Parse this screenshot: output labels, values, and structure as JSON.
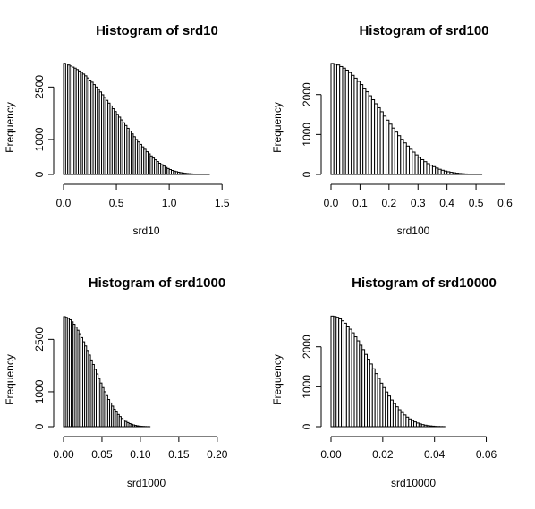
{
  "chart_data": [
    {
      "type": "bar",
      "title": "Histogram of srd10",
      "xlabel": "srd10",
      "ylabel": "Frequency",
      "xlim": [
        0,
        1.6
      ],
      "ylim": [
        0,
        3200
      ],
      "xticks": [
        0,
        0.5,
        1.0,
        1.5
      ],
      "xtick_labels": [
        "0.0",
        "0.5",
        "1.0",
        "1.5"
      ],
      "yticks": [
        0,
        1000,
        2500
      ],
      "ytick_labels": [
        "0",
        "1000",
        "2500"
      ],
      "bin_start": 0,
      "bin_width": 0.02,
      "values": [
        3180,
        3160,
        3130,
        3100,
        3070,
        3040,
        3000,
        2960,
        2920,
        2870,
        2820,
        2760,
        2700,
        2640,
        2570,
        2500,
        2430,
        2360,
        2280,
        2200,
        2120,
        2040,
        1960,
        1880,
        1800,
        1720,
        1640,
        1560,
        1480,
        1400,
        1320,
        1240,
        1160,
        1080,
        1000,
        930,
        860,
        790,
        720,
        650,
        590,
        530,
        470,
        420,
        370,
        320,
        280,
        240,
        200,
        170,
        140,
        115,
        95,
        80,
        65,
        52,
        42,
        34,
        27,
        22,
        17,
        13,
        10,
        7,
        5,
        3,
        2,
        1,
        1
      ]
    },
    {
      "type": "bar",
      "title": "Histogram of srd100",
      "xlabel": "srd100",
      "ylabel": "Frequency",
      "xlim": [
        0,
        0.58
      ],
      "ylim": [
        0,
        2800
      ],
      "xticks": [
        0,
        0.1,
        0.2,
        0.3,
        0.4,
        0.5,
        0.6
      ],
      "xtick_labels": [
        "0.0",
        "0.1",
        "0.2",
        "0.3",
        "0.4",
        "0.5",
        "0.6"
      ],
      "yticks": [
        0,
        1000,
        2000
      ],
      "ytick_labels": [
        "0",
        "1000",
        "2000"
      ],
      "bin_start": 0,
      "bin_width": 0.01,
      "values": [
        2780,
        2760,
        2740,
        2700,
        2660,
        2610,
        2550,
        2480,
        2410,
        2330,
        2250,
        2160,
        2070,
        1970,
        1870,
        1770,
        1670,
        1570,
        1460,
        1360,
        1260,
        1160,
        1060,
        970,
        880,
        790,
        710,
        630,
        560,
        490,
        430,
        370,
        320,
        270,
        230,
        195,
        160,
        130,
        105,
        85,
        68,
        54,
        42,
        32,
        24,
        18,
        13,
        9,
        6,
        4,
        3,
        2
      ]
    },
    {
      "type": "bar",
      "title": "Histogram of srd1000",
      "xlabel": "srd1000",
      "ylabel": "Frequency",
      "xlim": [
        0,
        0.22
      ],
      "ylim": [
        0,
        3200
      ],
      "xticks": [
        0,
        0.05,
        0.1,
        0.15,
        0.2
      ],
      "xtick_labels": [
        "0.00",
        "0.05",
        "0.10",
        "0.15",
        "0.20"
      ],
      "yticks": [
        0,
        1000,
        2500
      ],
      "ytick_labels": [
        "0",
        "1000",
        "2500"
      ],
      "bin_start": 0,
      "bin_width": 0.0025,
      "values": [
        3150,
        3130,
        3100,
        3060,
        3000,
        2930,
        2850,
        2760,
        2660,
        2550,
        2430,
        2310,
        2180,
        2050,
        1910,
        1780,
        1640,
        1510,
        1380,
        1250,
        1120,
        1000,
        890,
        780,
        680,
        590,
        500,
        420,
        350,
        290,
        235,
        190,
        150,
        118,
        90,
        68,
        50,
        36,
        25,
        17,
        11,
        7,
        4,
        2,
        1
      ]
    },
    {
      "type": "bar",
      "title": "Histogram of srd10000",
      "xlabel": "srd10000",
      "ylabel": "Frequency",
      "xlim": [
        0,
        0.065
      ],
      "ylim": [
        0,
        2800
      ],
      "xticks": [
        0,
        0.02,
        0.04,
        0.06
      ],
      "xtick_labels": [
        "0.00",
        "0.02",
        "0.04",
        "0.06"
      ],
      "yticks": [
        0,
        1000,
        2000
      ],
      "ytick_labels": [
        "0",
        "1000",
        "2000"
      ],
      "bin_start": 0,
      "bin_width": 0.001,
      "values": [
        2770,
        2760,
        2740,
        2700,
        2650,
        2590,
        2520,
        2440,
        2350,
        2250,
        2150,
        2040,
        1930,
        1810,
        1690,
        1570,
        1450,
        1330,
        1210,
        1090,
        980,
        870,
        770,
        670,
        580,
        500,
        425,
        355,
        295,
        240,
        195,
        155,
        120,
        92,
        70,
        52,
        38,
        27,
        19,
        13,
        8,
        5,
        3,
        2
      ]
    }
  ]
}
